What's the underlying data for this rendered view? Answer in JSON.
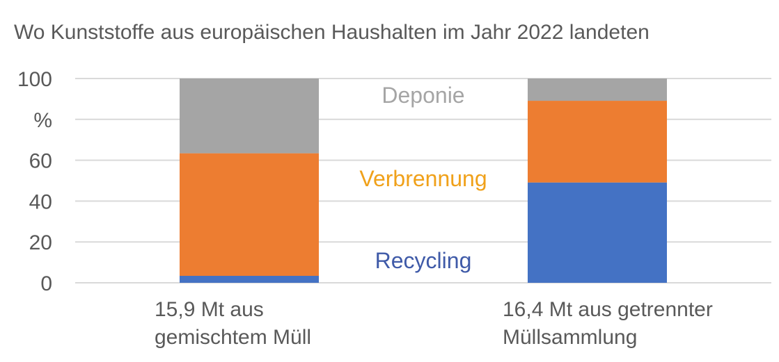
{
  "chart_data": {
    "type": "stacked-bar",
    "title": "Wo Kunststoffe aus europäischen Haushalten im Jahr 2022 landeten",
    "ylabel": "%",
    "ylim": [
      0,
      100
    ],
    "yticks": [
      "0",
      "20",
      "40",
      "60",
      "%",
      "100"
    ],
    "ytick_values": [
      0,
      20,
      40,
      60,
      80,
      100
    ],
    "grid": true,
    "categories": [
      [
        "15,9 Mt aus",
        "gemischtem Müll"
      ],
      [
        "16,4 Mt aus getrennter",
        "Müllsammlung"
      ]
    ],
    "series": [
      {
        "name": "Recycling",
        "values": [
          3.4,
          49.1
        ],
        "color": "#4472C4",
        "label_color": "#3F5AA8"
      },
      {
        "name": "Verbrennung",
        "values": [
          60.0,
          40.0
        ],
        "color": "#ED7D31",
        "label_color": "#F0A11A"
      },
      {
        "name": "Deponie",
        "values": [
          36.6,
          10.9
        ],
        "color": "#A5A5A5",
        "label_color": "#A5A5A5"
      }
    ]
  }
}
